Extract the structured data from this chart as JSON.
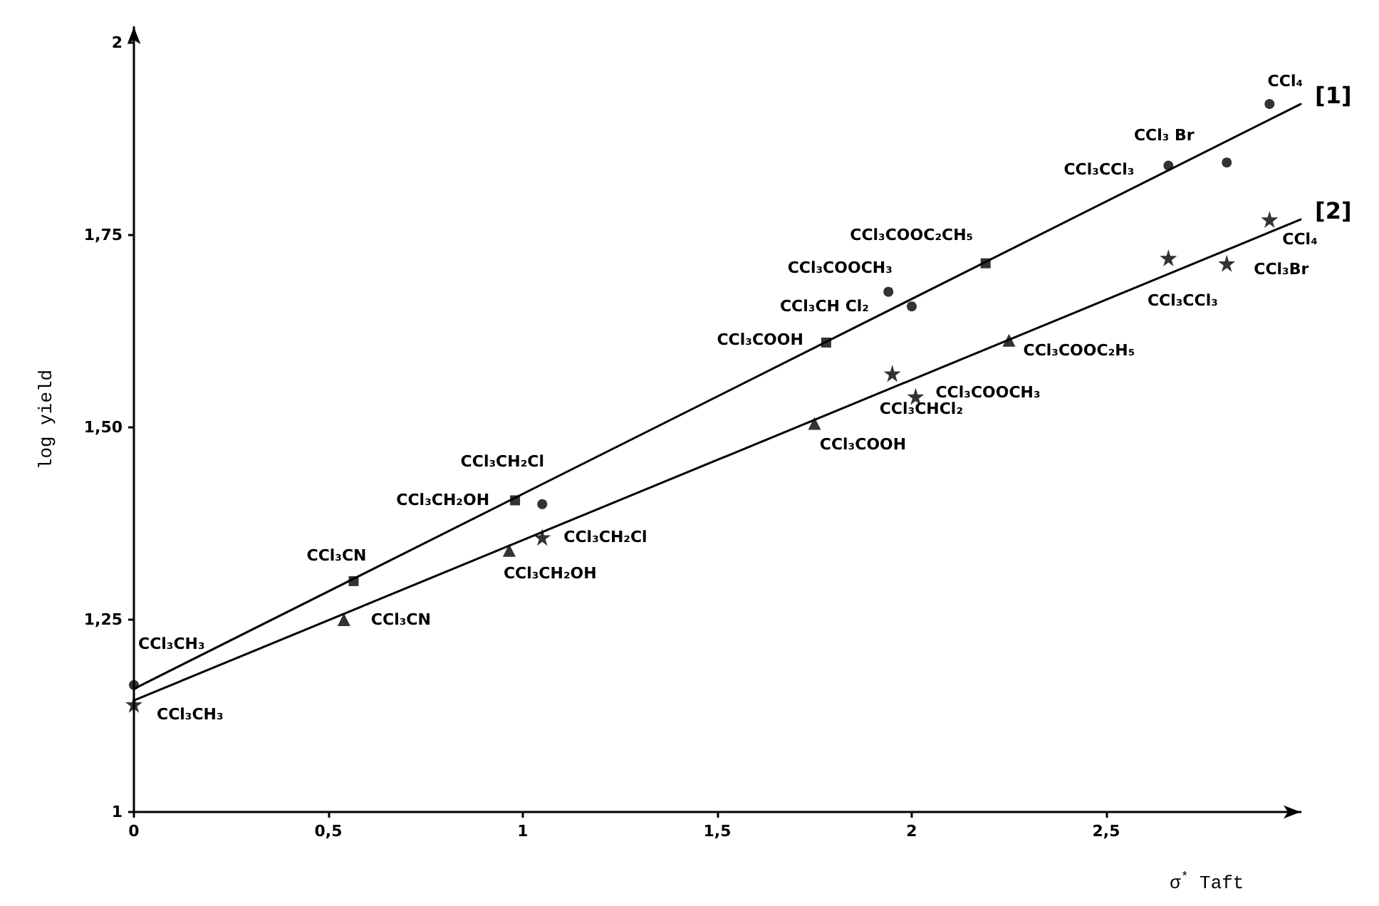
{
  "chart_data": {
    "type": "scatter",
    "xlabel": "σ$^{*}$ Taft",
    "ylabel": "log yield",
    "xlim": [
      0,
      3.0
    ],
    "xticks": [
      0,
      {
        "value": 0.5,
        "label": "0,5"
      },
      1,
      {
        "value": 1.5,
        "label": "1,5"
      },
      2,
      {
        "value": 2.5,
        "label": "2,5"
      }
    ],
    "ylim": [
      1,
      2.02
    ],
    "yticks": [
      1,
      {
        "value": 1.25,
        "label": "1,25"
      },
      {
        "value": 1.5,
        "label": "1,50"
      },
      {
        "value": 1.75,
        "label": "1,75"
      },
      2
    ],
    "grid": false,
    "legend": false,
    "series": [
      {
        "name": "[1]",
        "type": "line",
        "marker": "none",
        "line_style": "solid",
        "color": "#000000",
        "x": [
          0,
          3.0
        ],
        "values": [
          1.16,
          1.92
        ]
      },
      {
        "type": "scatter",
        "marker": "circle",
        "color": "#000000",
        "x": [
          0,
          1.05,
          2.0,
          1.94,
          2.66,
          2.81,
          2.92
        ],
        "values": [
          1.165,
          1.4,
          1.657,
          1.676,
          1.84,
          1.844,
          1.92
        ]
      },
      {
        "type": "scatter",
        "marker": "square",
        "color": "#000000",
        "x": [
          0.565,
          0.98,
          1.78,
          2.19
        ],
        "values": [
          1.3,
          1.405,
          1.61,
          1.713
        ]
      },
      {
        "name": "[2]",
        "type": "line",
        "marker": "none",
        "line_style": "solid",
        "color": "#000000",
        "x": [
          0,
          3.0
        ],
        "values": [
          1.145,
          1.77
        ]
      },
      {
        "type": "scatter",
        "marker": "star",
        "color": "#000000",
        "x": [
          0,
          1.05,
          2.01,
          1.95,
          2.66,
          2.81,
          2.92
        ],
        "values": [
          1.14,
          1.357,
          1.54,
          1.57,
          1.72,
          1.713,
          1.77
        ]
      },
      {
        "type": "scatter",
        "marker": "triangle",
        "color": "#000000",
        "x": [
          0.54,
          0.965,
          1.75,
          2.25
        ],
        "values": [
          1.25,
          1.34,
          1.505,
          1.613
        ]
      }
    ],
    "annotations": [
      {
        "text": "CCl₃CH₃",
        "x": 0,
        "y": 1.165
      },
      {
        "text": "CCl₃CN",
        "x": 0.565,
        "y": 1.3
      },
      {
        "text": "CCl₃CH₂OH",
        "x": 0.98,
        "y": 1.405
      },
      {
        "text": "CCl₃CH₂Cl",
        "x": 1.05,
        "y": 1.4
      },
      {
        "text": "CCl₃COOH",
        "x": 1.78,
        "y": 1.61
      },
      {
        "text": "CCl₃CH Cl₂",
        "x": 2.0,
        "y": 1.657
      },
      {
        "text": "CCl₃COOCH₃",
        "x": 1.94,
        "y": 1.676
      },
      {
        "text": "CCl₃COOC₂CH₅",
        "x": 2.19,
        "y": 1.713
      },
      {
        "text": "CCl₃CCl₃",
        "x": 2.66,
        "y": 1.84
      },
      {
        "text": "CCl₃ Br",
        "x": 2.81,
        "y": 1.844
      },
      {
        "text": "CCl₄",
        "x": 2.92,
        "y": 1.92
      },
      {
        "text": "CCl₃CH₃",
        "x": 0,
        "y": 1.14
      },
      {
        "text": "CCl₃CN",
        "x": 0.54,
        "y": 1.25
      },
      {
        "text": "CCl₃CH₂OH",
        "x": 0.965,
        "y": 1.34
      },
      {
        "text": "CCl₃CH₂Cl",
        "x": 1.05,
        "y": 1.357
      },
      {
        "text": "CCl₃COOH",
        "x": 1.75,
        "y": 1.505
      },
      {
        "text": "CCl₃COOCH₃",
        "x": 2.01,
        "y": 1.54
      },
      {
        "text": "CCl₃CHCl₂",
        "x": 1.95,
        "y": 1.57
      },
      {
        "text": "CCl₃COOC₂H₅",
        "x": 2.25,
        "y": 1.613
      },
      {
        "text": "CCl₃CCl₃",
        "x": 2.66,
        "y": 1.72
      },
      {
        "text": "CCl₃Br",
        "x": 2.81,
        "y": 1.713
      },
      {
        "text": "CCl₄",
        "x": 2.92,
        "y": 1.77
      }
    ]
  }
}
